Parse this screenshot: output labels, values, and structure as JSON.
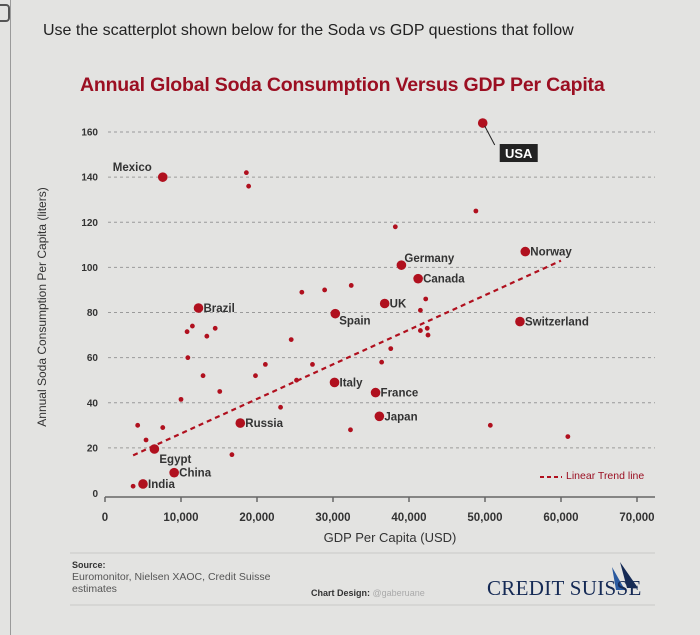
{
  "instruction": "Use the scatterplot shown below for the Soda vs GDP questions that follow",
  "colors": {
    "point": "#b0101e",
    "title": "#9b0f22",
    "logo": "#152a55"
  },
  "chart_data": {
    "type": "scatter",
    "title": "Annual Global Soda Consumption Versus GDP Per Capita",
    "xlabel": "GDP Per Capita (USD)",
    "ylabel": "Annual Soda Consumption Per Capita (liters)",
    "xlim": [
      0,
      70000
    ],
    "ylim": [
      0,
      160
    ],
    "xticks": [
      "0",
      "10,000",
      "20,000",
      "30,000",
      "40,000",
      "50,000",
      "60,000",
      "70,000"
    ],
    "xtick_values": [
      0,
      10000,
      20000,
      30000,
      40000,
      50000,
      60000,
      70000
    ],
    "yticks": [
      "0",
      "20",
      "40",
      "60",
      "80",
      "100",
      "120",
      "140",
      "160"
    ],
    "ytick_values": [
      0,
      20,
      40,
      60,
      80,
      100,
      120,
      140,
      160
    ],
    "grid": "horizontal dashed",
    "legend": {
      "label": "Linear Trend line",
      "placement": "bottom-right"
    },
    "trend_line": {
      "x": [
        3700,
        60000
      ],
      "y": [
        16.7,
        103
      ]
    },
    "points": [
      {
        "label": "USA",
        "x": 49700,
        "y": 164
      },
      {
        "label": "Mexico",
        "x": 7600,
        "y": 140
      },
      {
        "label": "Norway",
        "x": 55300,
        "y": 107
      },
      {
        "label": "Germany",
        "x": 39000,
        "y": 101
      },
      {
        "label": "Canada",
        "x": 41200,
        "y": 95
      },
      {
        "label": "UK",
        "x": 36800,
        "y": 84
      },
      {
        "label": "Brazil",
        "x": 12300,
        "y": 82
      },
      {
        "label": "Spain",
        "x": 30300,
        "y": 79.5
      },
      {
        "label": "Switzerland",
        "x": 54600,
        "y": 76
      },
      {
        "label": "Italy",
        "x": 30200,
        "y": 49
      },
      {
        "label": "France",
        "x": 35600,
        "y": 44.5
      },
      {
        "label": "Japan",
        "x": 36100,
        "y": 34
      },
      {
        "label": "Russia",
        "x": 17800,
        "y": 31
      },
      {
        "label": "Egypt",
        "x": 6500,
        "y": 19.5
      },
      {
        "label": "China",
        "x": 9100,
        "y": 9
      },
      {
        "label": "India",
        "x": 5000,
        "y": 4
      },
      {
        "label": "",
        "x": 18600,
        "y": 142
      },
      {
        "label": "",
        "x": 18900,
        "y": 136
      },
      {
        "label": "",
        "x": 48800,
        "y": 125
      },
      {
        "label": "",
        "x": 38200,
        "y": 118
      },
      {
        "label": "",
        "x": 32400,
        "y": 92
      },
      {
        "label": "",
        "x": 28900,
        "y": 90
      },
      {
        "label": "",
        "x": 25900,
        "y": 89
      },
      {
        "label": "",
        "x": 42200,
        "y": 86
      },
      {
        "label": "",
        "x": 41500,
        "y": 81
      },
      {
        "label": "",
        "x": 11500,
        "y": 74
      },
      {
        "label": "",
        "x": 14500,
        "y": 73
      },
      {
        "label": "",
        "x": 42400,
        "y": 73
      },
      {
        "label": "",
        "x": 41500,
        "y": 72
      },
      {
        "label": "",
        "x": 10800,
        "y": 71.5
      },
      {
        "label": "",
        "x": 42500,
        "y": 70
      },
      {
        "label": "",
        "x": 13400,
        "y": 69.5
      },
      {
        "label": "",
        "x": 24500,
        "y": 68
      },
      {
        "label": "",
        "x": 37600,
        "y": 64
      },
      {
        "label": "",
        "x": 10900,
        "y": 60
      },
      {
        "label": "",
        "x": 36400,
        "y": 58
      },
      {
        "label": "",
        "x": 21100,
        "y": 57
      },
      {
        "label": "",
        "x": 27300,
        "y": 57
      },
      {
        "label": "",
        "x": 19800,
        "y": 52
      },
      {
        "label": "",
        "x": 12900,
        "y": 52
      },
      {
        "label": "",
        "x": 25200,
        "y": 50
      },
      {
        "label": "",
        "x": 15100,
        "y": 45
      },
      {
        "label": "",
        "x": 10000,
        "y": 41.5
      },
      {
        "label": "",
        "x": 23100,
        "y": 38
      },
      {
        "label": "",
        "x": 4300,
        "y": 30
      },
      {
        "label": "",
        "x": 50700,
        "y": 30
      },
      {
        "label": "",
        "x": 7600,
        "y": 29
      },
      {
        "label": "",
        "x": 32300,
        "y": 28
      },
      {
        "label": "",
        "x": 60900,
        "y": 25
      },
      {
        "label": "",
        "x": 5400,
        "y": 23.5
      },
      {
        "label": "",
        "x": 16700,
        "y": 17
      },
      {
        "label": "",
        "x": 3700,
        "y": 3
      }
    ]
  },
  "footer": {
    "source_heading": "Source:",
    "source_text": "Euromonitor, Nielsen XAOC, Credit Suisse estimates",
    "design_label": "Chart Design:",
    "design_handle": "@gaberuane",
    "logo_text": "CREDIT SUISSE"
  }
}
